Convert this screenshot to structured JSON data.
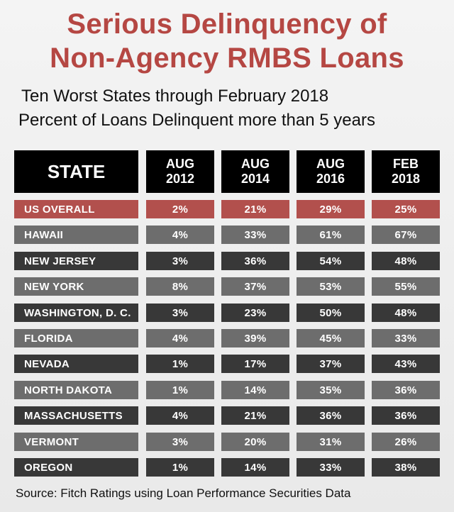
{
  "title_line1": "Serious Delinquency of",
  "title_line2": "Non-Agency RMBS Loans",
  "subtitle_line1": "Ten Worst States through February 2018",
  "subtitle_line2": "Percent of Loans Delinquent more than 5 years",
  "source": "Source:  Fitch Ratings using Loan Performance Securities Data",
  "colors": {
    "title": "#b54743",
    "highlight_row": "#b2504d",
    "row_light": "#6d6d6d",
    "row_dark": "#383838",
    "header": "#000000"
  },
  "chart_data": {
    "type": "table",
    "columns": [
      {
        "line1": "STATE",
        "line2": ""
      },
      {
        "line1": "AUG",
        "line2": "2012"
      },
      {
        "line1": "AUG",
        "line2": "2014"
      },
      {
        "line1": "AUG",
        "line2": "2016"
      },
      {
        "line1": "FEB",
        "line2": "2018"
      }
    ],
    "rows": [
      {
        "state": "US OVERALL",
        "values": [
          "2%",
          "21%",
          "29%",
          "25%"
        ],
        "style": "highlight"
      },
      {
        "state": "HAWAII",
        "values": [
          "4%",
          "33%",
          "61%",
          "67%"
        ],
        "style": "light"
      },
      {
        "state": "NEW JERSEY",
        "values": [
          "3%",
          "36%",
          "54%",
          "48%"
        ],
        "style": "dark"
      },
      {
        "state": "NEW YORK",
        "values": [
          "8%",
          "37%",
          "53%",
          "55%"
        ],
        "style": "light"
      },
      {
        "state": "WASHINGTON, D. C.",
        "values": [
          "3%",
          "23%",
          "50%",
          "48%"
        ],
        "style": "dark"
      },
      {
        "state": "FLORIDA",
        "values": [
          "4%",
          "39%",
          "45%",
          "33%"
        ],
        "style": "light"
      },
      {
        "state": "NEVADA",
        "values": [
          "1%",
          "17%",
          "37%",
          "43%"
        ],
        "style": "dark"
      },
      {
        "state": "NORTH DAKOTA",
        "values": [
          "1%",
          "14%",
          "35%",
          "36%"
        ],
        "style": "light"
      },
      {
        "state": "MASSACHUSETTS",
        "values": [
          "4%",
          "21%",
          "36%",
          "36%"
        ],
        "style": "dark"
      },
      {
        "state": "VERMONT",
        "values": [
          "3%",
          "20%",
          "31%",
          "26%"
        ],
        "style": "light"
      },
      {
        "state": "OREGON",
        "values": [
          "1%",
          "14%",
          "33%",
          "38%"
        ],
        "style": "dark"
      }
    ]
  }
}
